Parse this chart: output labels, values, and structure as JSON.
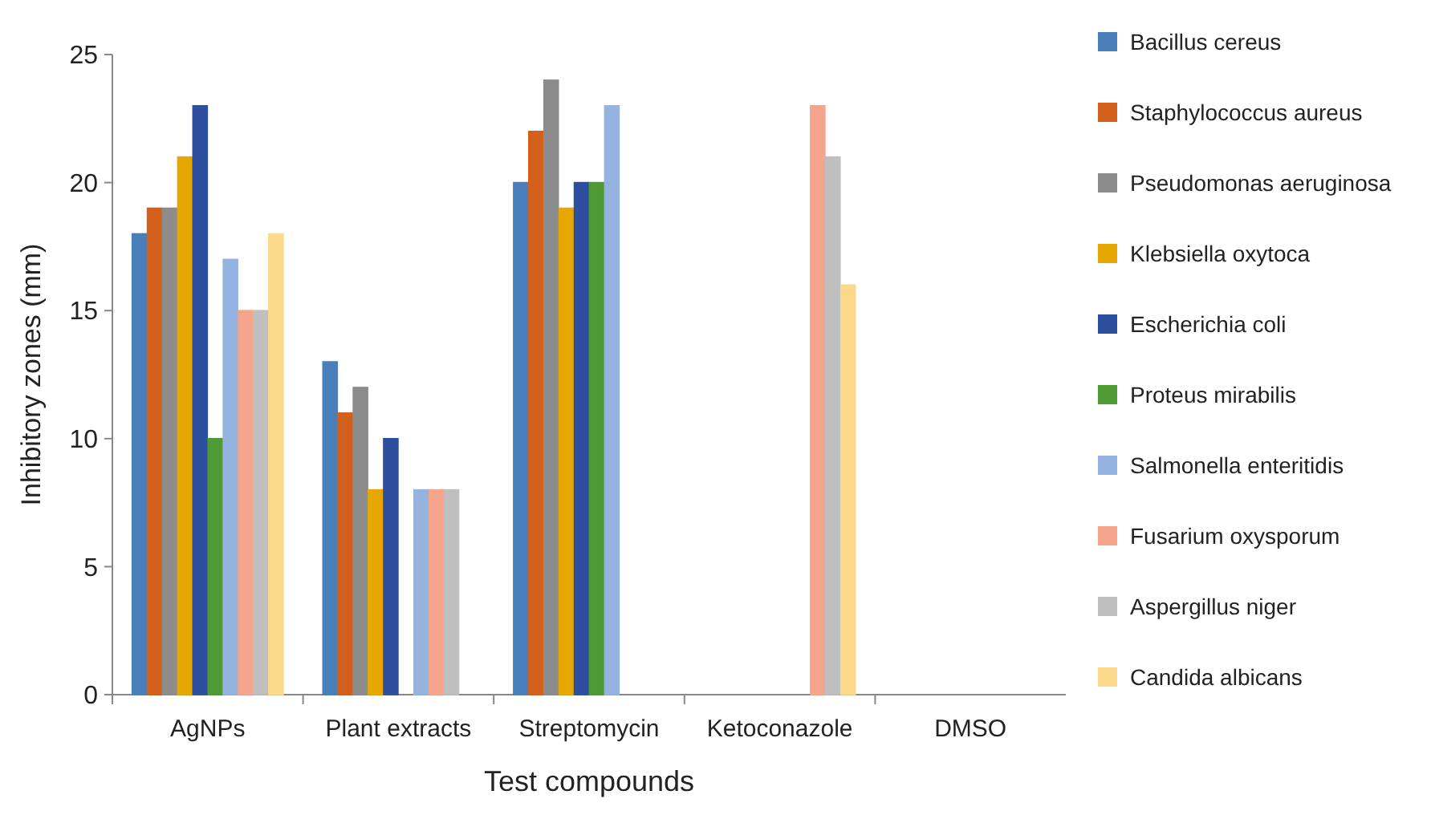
{
  "chart_data": {
    "type": "bar",
    "xlabel": "Test compounds",
    "ylabel": "Inhibitory zones (mm)",
    "categories": [
      "AgNPs",
      "Plant extracts",
      "Streptomycin",
      "Ketoconazole",
      "DMSO"
    ],
    "ylim": [
      0,
      25
    ],
    "yticks": [
      0,
      5,
      10,
      15,
      20,
      25
    ],
    "grid": false,
    "legend": "right",
    "series": [
      {
        "name": "Bacillus cereus",
        "color": "#4a7ebb",
        "values": [
          18,
          13,
          20,
          0,
          0
        ]
      },
      {
        "name": "Staphylococcus aureus",
        "color": "#d2601c",
        "values": [
          19,
          11,
          22,
          0,
          0
        ]
      },
      {
        "name": "Pseudomonas aeruginosa",
        "color": "#8c8c8c",
        "values": [
          19,
          12,
          24,
          0,
          0
        ]
      },
      {
        "name": "Klebsiella oxytoca",
        "color": "#e6a800",
        "values": [
          21,
          8,
          19,
          0,
          0
        ]
      },
      {
        "name": "Escherichia coli",
        "color": "#2e4fa0",
        "values": [
          23,
          10,
          20,
          0,
          0
        ]
      },
      {
        "name": "Proteus mirabilis",
        "color": "#4e9a33",
        "values": [
          10,
          0,
          20,
          0,
          0
        ]
      },
      {
        "name": "Salmonella enteritidis",
        "color": "#95b3e0",
        "values": [
          17,
          8,
          23,
          0,
          0
        ]
      },
      {
        "name": "Fusarium oxysporum",
        "color": "#f4a58c",
        "values": [
          15,
          8,
          0,
          23,
          0
        ]
      },
      {
        "name": "Aspergillus niger",
        "color": "#bfbfbf",
        "values": [
          15,
          8,
          0,
          21,
          0
        ]
      },
      {
        "name": "Candida albicans",
        "color": "#fbd88a",
        "values": [
          18,
          0,
          0,
          16,
          0
        ]
      }
    ]
  }
}
